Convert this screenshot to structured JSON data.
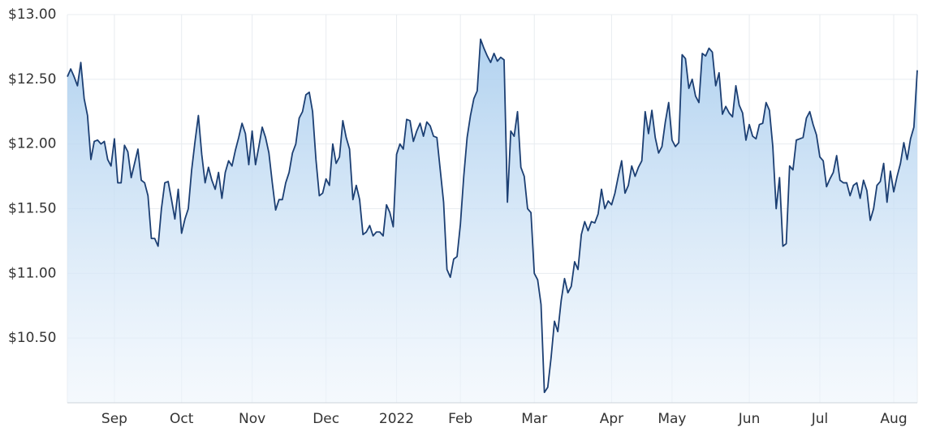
{
  "chart_data": {
    "type": "area",
    "categories": [
      null,
      null,
      null,
      null,
      null,
      null,
      null,
      null,
      null,
      null,
      null,
      null,
      null,
      null,
      "Sep",
      null,
      null,
      null,
      null,
      null,
      null,
      null,
      null,
      null,
      null,
      null,
      null,
      null,
      null,
      null,
      null,
      null,
      null,
      null,
      "Oct",
      null,
      null,
      null,
      null,
      null,
      null,
      null,
      null,
      null,
      null,
      null,
      null,
      null,
      null,
      null,
      null,
      null,
      null,
      null,
      null,
      "Nov",
      null,
      null,
      null,
      null,
      null,
      null,
      null,
      null,
      null,
      null,
      null,
      null,
      null,
      null,
      null,
      null,
      null,
      null,
      null,
      null,
      null,
      "Dec",
      null,
      null,
      null,
      null,
      null,
      null,
      null,
      null,
      null,
      null,
      null,
      null,
      null,
      null,
      null,
      null,
      null,
      null,
      null,
      null,
      "2022",
      null,
      null,
      null,
      null,
      null,
      null,
      null,
      null,
      null,
      null,
      null,
      null,
      null,
      null,
      null,
      null,
      null,
      null,
      "Feb",
      null,
      null,
      null,
      null,
      null,
      null,
      null,
      null,
      null,
      null,
      null,
      null,
      null,
      null,
      null,
      null,
      null,
      null,
      null,
      null,
      null,
      "Mar",
      null,
      null,
      null,
      null,
      null,
      null,
      null,
      null,
      null,
      null,
      null,
      null,
      null,
      null,
      null,
      null,
      null,
      null,
      null,
      null,
      null,
      null,
      "Apr",
      null,
      null,
      null,
      null,
      null,
      null,
      null,
      null,
      null,
      null,
      null,
      null,
      null,
      null,
      null,
      null,
      null,
      "May",
      null,
      null,
      null,
      null,
      null,
      null,
      null,
      null,
      null,
      null,
      null,
      null,
      null,
      null,
      null,
      null,
      null,
      null,
      null,
      null,
      null,
      null,
      "Jun",
      null,
      null,
      null,
      null,
      null,
      null,
      null,
      null,
      null,
      null,
      null,
      null,
      null,
      null,
      null,
      null,
      null,
      null,
      null,
      null,
      "Jul",
      null,
      null,
      null,
      null,
      null,
      null,
      null,
      null,
      null,
      null,
      null,
      null,
      null,
      null,
      null,
      null,
      null,
      null,
      null,
      null,
      null,
      "Aug",
      null,
      null,
      null,
      null,
      null,
      null,
      null
    ],
    "values": [
      12.52,
      12.58,
      12.52,
      12.45,
      12.63,
      12.35,
      12.22,
      11.88,
      12.02,
      12.03,
      12.0,
      12.02,
      11.88,
      11.83,
      12.04,
      11.7,
      11.7,
      11.99,
      11.94,
      11.74,
      11.85,
      11.96,
      11.72,
      11.7,
      11.6,
      11.27,
      11.27,
      11.21,
      11.5,
      11.7,
      11.71,
      11.57,
      11.42,
      11.65,
      11.31,
      11.42,
      11.5,
      11.8,
      12.02,
      12.22,
      11.92,
      11.7,
      11.82,
      11.72,
      11.65,
      11.78,
      11.58,
      11.78,
      11.87,
      11.83,
      11.95,
      12.05,
      12.16,
      12.08,
      11.84,
      12.1,
      11.84,
      11.98,
      12.13,
      12.05,
      11.93,
      11.7,
      11.49,
      11.57,
      11.57,
      11.7,
      11.78,
      11.93,
      12.0,
      12.2,
      12.25,
      12.38,
      12.4,
      12.25,
      11.88,
      11.6,
      11.62,
      11.73,
      11.68,
      12.0,
      11.85,
      11.9,
      12.18,
      12.05,
      11.96,
      11.57,
      11.68,
      11.57,
      11.3,
      11.32,
      11.37,
      11.29,
      11.32,
      11.32,
      11.29,
      11.53,
      11.47,
      11.36,
      11.92,
      12.0,
      11.96,
      12.19,
      12.18,
      12.02,
      12.1,
      12.16,
      12.06,
      12.17,
      12.14,
      12.06,
      12.05,
      11.8,
      11.55,
      11.03,
      10.97,
      11.11,
      11.13,
      11.38,
      11.75,
      12.05,
      12.22,
      12.35,
      12.41,
      12.81,
      12.74,
      12.68,
      12.63,
      12.7,
      12.64,
      12.67,
      12.65,
      11.55,
      12.1,
      12.06,
      12.25,
      11.82,
      11.75,
      11.5,
      11.47,
      11.0,
      10.95,
      10.76,
      10.08,
      10.12,
      10.35,
      10.63,
      10.55,
      10.79,
      10.96,
      10.85,
      10.9,
      11.09,
      11.03,
      11.3,
      11.4,
      11.33,
      11.4,
      11.39,
      11.46,
      11.65,
      11.5,
      11.56,
      11.53,
      11.62,
      11.75,
      11.87,
      11.62,
      11.68,
      11.83,
      11.75,
      11.82,
      11.87,
      12.25,
      12.08,
      12.26,
      12.05,
      11.93,
      11.98,
      12.17,
      12.32,
      12.03,
      11.98,
      12.01,
      12.69,
      12.66,
      12.43,
      12.5,
      12.37,
      12.32,
      12.7,
      12.68,
      12.74,
      12.71,
      12.45,
      12.55,
      12.23,
      12.29,
      12.24,
      12.21,
      12.45,
      12.3,
      12.24,
      12.03,
      12.15,
      12.06,
      12.04,
      12.15,
      12.16,
      12.32,
      12.26,
      11.98,
      11.5,
      11.74,
      11.21,
      11.23,
      11.83,
      11.8,
      12.03,
      12.04,
      12.05,
      12.2,
      12.25,
      12.15,
      12.07,
      11.9,
      11.87,
      11.67,
      11.73,
      11.78,
      11.91,
      11.72,
      11.7,
      11.7,
      11.6,
      11.68,
      11.7,
      11.58,
      11.72,
      11.64,
      11.41,
      11.5,
      11.68,
      11.71,
      11.85,
      11.55,
      11.79,
      11.63,
      11.75,
      11.85,
      12.01,
      11.88,
      12.04,
      12.13,
      12.57
    ],
    "color": "#1c3f73",
    "ylim": [
      10,
      13
    ],
    "yticks": [
      {
        "value": 10.5,
        "label": "$10.50"
      },
      {
        "value": 11,
        "label": "$11.00"
      },
      {
        "value": 11.5,
        "label": "$11.50"
      },
      {
        "value": 12,
        "label": "$12.00"
      },
      {
        "value": 12.5,
        "label": "$12.50"
      },
      {
        "value": 13,
        "label": "$13.00"
      }
    ],
    "grid": true
  }
}
